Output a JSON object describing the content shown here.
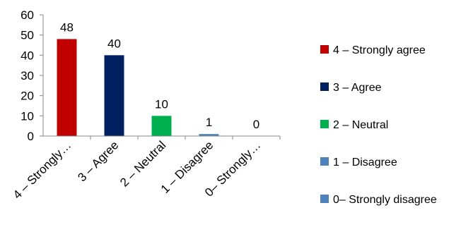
{
  "chart_data": {
    "type": "bar",
    "categories": [
      "4 – Strongly…",
      "3 – Agree",
      "2 – Neutral",
      "1 – Disagree",
      "0– Strongly…"
    ],
    "values": [
      48,
      40,
      10,
      1,
      0
    ],
    "data_labels": [
      "48",
      "40",
      "10",
      "1",
      "0"
    ],
    "colors": [
      "#c00000",
      "#002060",
      "#00b050",
      "#4f81bd",
      "#4f81bd"
    ],
    "ylim": [
      0,
      60
    ],
    "yticks": [
      0,
      10,
      20,
      30,
      40,
      50,
      60
    ],
    "title": "",
    "xlabel": "",
    "ylabel": "",
    "grid": false,
    "legend": {
      "position": "right",
      "entries": [
        "4 – Strongly agree",
        "3 – Agree",
        "2 – Neutral",
        "1 – Disagree",
        "0– Strongly disagree"
      ]
    }
  }
}
